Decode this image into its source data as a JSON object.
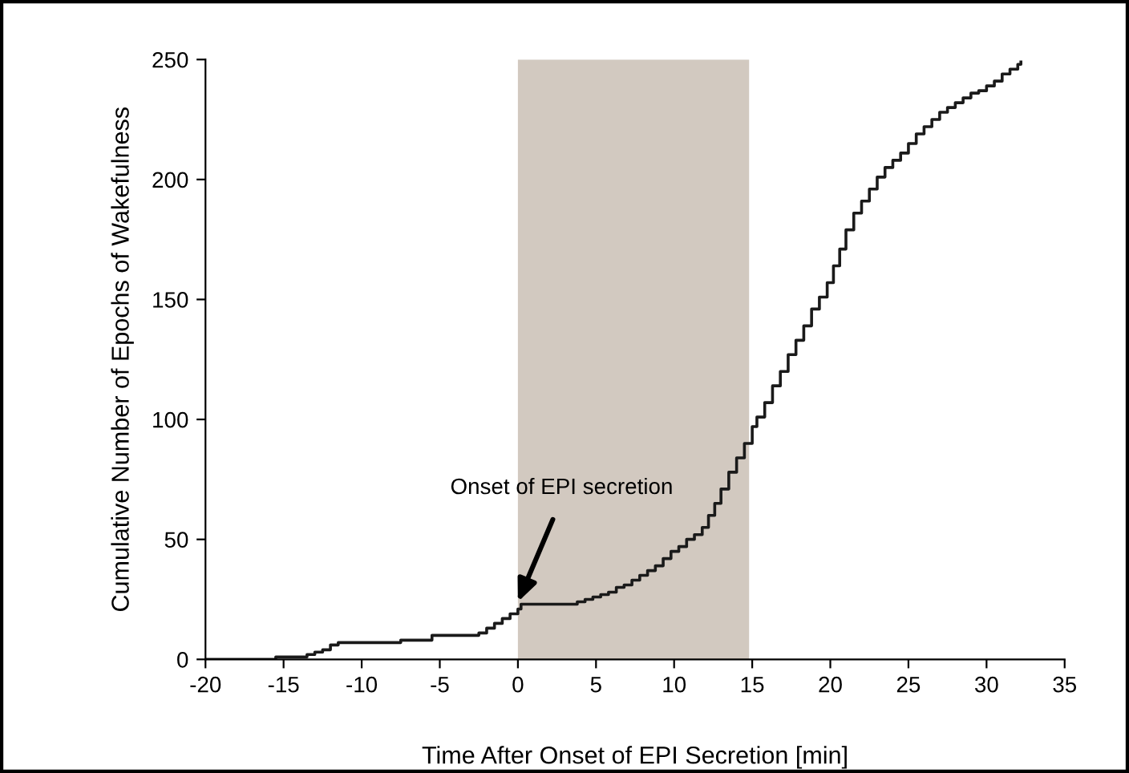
{
  "chart_data": {
    "type": "step",
    "xlabel": "Time After Onset of EPI Secretion [min]",
    "ylabel": "Cumulative Number of Epochs of Wakefulness",
    "series": [
      {
        "color": "#1a1a1a",
        "x": [
          -20,
          -15.5,
          -13.5,
          -13,
          -12.5,
          -12,
          -11.5,
          -7.5,
          -5.5,
          -2.5,
          -2,
          -1.5,
          -1,
          -0.5,
          0,
          0.2,
          3.8,
          4.3,
          4.8,
          5.3,
          5.8,
          6.3,
          6.8,
          7.3,
          7.8,
          8.3,
          8.8,
          9.3,
          9.8,
          10.3,
          10.8,
          11.3,
          11.8,
          12.2,
          12.6,
          13,
          13.5,
          14,
          14.5,
          15,
          15.3,
          15.8,
          16.3,
          16.8,
          17.3,
          17.8,
          18.3,
          18.8,
          19.3,
          19.8,
          20.2,
          20.6,
          21,
          21.5,
          22,
          22.5,
          23,
          23.5,
          24,
          24.5,
          25,
          25.5,
          26,
          26.5,
          27,
          27.5,
          28,
          28.5,
          29,
          29.5,
          30,
          30.5,
          31,
          31.5,
          32,
          32.2
        ],
        "values": [
          0,
          1,
          2,
          3,
          4,
          6,
          7,
          8,
          10,
          11,
          13,
          15,
          17,
          19,
          21,
          23,
          24,
          25,
          26,
          27,
          28,
          30,
          31,
          33,
          35,
          37,
          39,
          42,
          45,
          47,
          50,
          52,
          55,
          60,
          65,
          71,
          78,
          84,
          90,
          97,
          101,
          107,
          114,
          120,
          127,
          133,
          139,
          146,
          151,
          157,
          164,
          171,
          179,
          186,
          191,
          196,
          201,
          205,
          208,
          211,
          215,
          219,
          222,
          225,
          228,
          230,
          232,
          234,
          236,
          237,
          239,
          241,
          244,
          246,
          248,
          249
        ]
      }
    ],
    "xlim": [
      -20,
      35
    ],
    "xticks": [
      -20,
      -15,
      -10,
      -5,
      0,
      5,
      10,
      15,
      20,
      25,
      30,
      35
    ],
    "ylim": [
      0,
      250
    ],
    "yticks": [
      0,
      50,
      100,
      150,
      200,
      250
    ],
    "bands": [
      {
        "axis": "x",
        "from": 0,
        "to": 14.8,
        "color": "#d2c9c0"
      }
    ],
    "annotations": [
      {
        "text": "Onset of EPI secretion",
        "x": 0,
        "y": 23
      }
    ],
    "grid": false,
    "legend": false
  }
}
